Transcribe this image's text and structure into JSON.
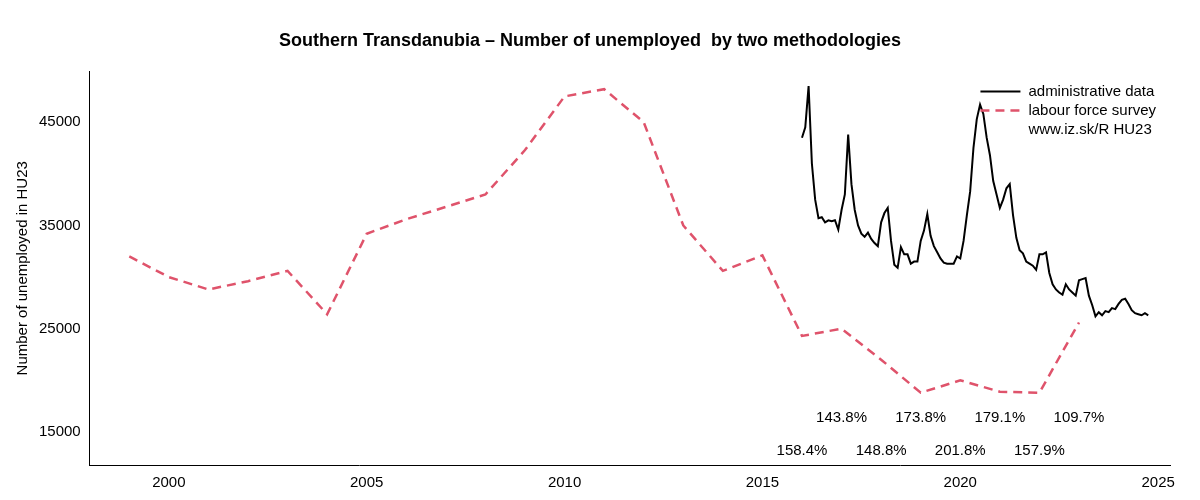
{
  "chart_data": {
    "type": "line",
    "title": "Southern Transdanubia – Number of unemployed  by two methodologies",
    "y_label": "Number of unemployed in HU23",
    "xlim": [
      1998,
      2025.3
    ],
    "xticks": [
      2000,
      2005,
      2010,
      2015,
      2020,
      2025
    ],
    "ylim": [
      11800,
      49900
    ],
    "yticks": [
      15000,
      25000,
      35000,
      45000
    ],
    "grid": false,
    "legend": "top right",
    "source": "www.iz.sk/R HU23",
    "series": [
      {
        "name": "administrative data",
        "color": "#000000",
        "line_style": "solid",
        "x": [
          2016.0,
          2016.083,
          2016.167,
          2016.25,
          2016.333,
          2016.417,
          2016.5,
          2016.583,
          2016.667,
          2016.75,
          2016.833,
          2016.917,
          2017.0,
          2017.083,
          2017.167,
          2017.25,
          2017.333,
          2017.417,
          2017.5,
          2017.583,
          2017.667,
          2017.75,
          2017.833,
          2017.917,
          2018.0,
          2018.083,
          2018.167,
          2018.25,
          2018.333,
          2018.417,
          2018.5,
          2018.583,
          2018.667,
          2018.75,
          2018.833,
          2018.917,
          2019.0,
          2019.083,
          2019.167,
          2019.25,
          2019.333,
          2019.417,
          2019.5,
          2019.583,
          2019.667,
          2019.75,
          2019.833,
          2019.917,
          2020.0,
          2020.083,
          2020.167,
          2020.25,
          2020.333,
          2020.417,
          2020.5,
          2020.583,
          2020.667,
          2020.75,
          2020.833,
          2020.917,
          2021.0,
          2021.083,
          2021.167,
          2021.25,
          2021.333,
          2021.417,
          2021.5,
          2021.583,
          2021.667,
          2021.75,
          2021.833,
          2021.917,
          2022.0,
          2022.083,
          2022.167,
          2022.25,
          2022.333,
          2022.417,
          2022.5,
          2022.583,
          2022.667,
          2022.75,
          2022.833,
          2022.917,
          2023.0,
          2023.083,
          2023.167,
          2023.25,
          2023.333,
          2023.417,
          2023.5,
          2023.583,
          2023.667,
          2023.75,
          2023.833,
          2023.917,
          2024.0,
          2024.083,
          2024.167,
          2024.25,
          2024.333,
          2024.417,
          2024.5,
          2024.583,
          2024.667,
          2024.75
        ],
        "values": [
          43500,
          44500,
          48500,
          41000,
          37500,
          35700,
          35800,
          35300,
          35500,
          35400,
          35500,
          34600,
          36500,
          38000,
          43800,
          39000,
          36500,
          35000,
          34200,
          33900,
          34300,
          33700,
          33300,
          33000,
          35300,
          36200,
          36700,
          33500,
          31200,
          30900,
          32900,
          32200,
          32200,
          31300,
          31500,
          31500,
          33500,
          34500,
          36100,
          34000,
          33000,
          32400,
          31800,
          31400,
          31300,
          31300,
          31300,
          32000,
          31800,
          33500,
          36000,
          38300,
          42500,
          45300,
          46700,
          45800,
          43500,
          41800,
          39300,
          38000,
          36700,
          37500,
          38600,
          39000,
          36000,
          33800,
          32600,
          32300,
          31500,
          31300,
          31100,
          30700,
          32200,
          32200,
          32400,
          30400,
          29300,
          28800,
          28500,
          28300,
          29300,
          28800,
          28500,
          28200,
          29700,
          29800,
          29900,
          28200,
          27300,
          26200,
          26600,
          26300,
          26700,
          26600,
          27000,
          26900,
          27400,
          27800,
          27900,
          27400,
          26800,
          26500,
          26400,
          26300,
          26500,
          26300
        ]
      },
      {
        "name": "labour force survey",
        "color": "#DF536B",
        "line_style": "dashed",
        "x": [
          1999,
          2000,
          2001,
          2002,
          2003,
          2004,
          2005,
          2006,
          2007,
          2008,
          2009,
          2010,
          2011,
          2012,
          2013,
          2014,
          2015,
          2016,
          2017,
          2018,
          2019,
          2020,
          2021,
          2022,
          2023
        ],
        "values": [
          32000,
          30000,
          28800,
          29600,
          30600,
          26400,
          34200,
          35600,
          36800,
          38000,
          42300,
          47500,
          48200,
          45000,
          35000,
          30600,
          32100,
          24300,
          25000,
          22000,
          18800,
          20000,
          18900,
          18800,
          25600
        ]
      }
    ],
    "annotations": [
      {
        "x": 2016,
        "text": "158.4%"
      },
      {
        "x": 2017,
        "text": "143.8%"
      },
      {
        "x": 2018,
        "text": "148.8%"
      },
      {
        "x": 2019,
        "text": "173.8%"
      },
      {
        "x": 2020,
        "text": "201.8%"
      },
      {
        "x": 2021,
        "text": "179.1%"
      },
      {
        "x": 2022,
        "text": "157.9%"
      },
      {
        "x": 2023,
        "text": "109.7%"
      }
    ]
  }
}
